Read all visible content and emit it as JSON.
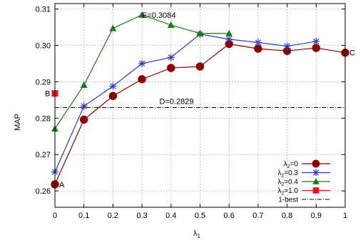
{
  "chart_data": {
    "type": "line",
    "xlabel": "λ",
    "xlabel_sub": "1",
    "ylabel": "MAP",
    "xlim": [
      0,
      1
    ],
    "ylim": [
      0.2555,
      0.3115
    ],
    "xticks": [
      "0",
      "0.1",
      "0.2",
      "0.3",
      "0.4",
      "0.5",
      "0.6",
      "0.7",
      "0.8",
      "0.9",
      "1"
    ],
    "yticks": [
      "0.26",
      "0.27",
      "0.28",
      "0.29",
      "0.30",
      "0.31"
    ],
    "ytick_values": [
      0.26,
      0.27,
      0.28,
      0.29,
      0.3,
      0.31
    ],
    "grid": true,
    "legend_position": "bottom-right",
    "series": [
      {
        "name_prefix": "λ",
        "name_sub": "2",
        "name_suffix": "=0",
        "color": "#8b0000",
        "marker": "circle",
        "x": [
          0,
          0.1,
          0.2,
          0.3,
          0.4,
          0.5,
          0.6,
          0.7,
          0.8,
          0.9,
          1.0
        ],
        "values": [
          0.2618,
          0.2796,
          0.2861,
          0.2907,
          0.2938,
          0.2942,
          0.3004,
          0.2991,
          0.2985,
          0.2993,
          0.298
        ]
      },
      {
        "name_prefix": "λ",
        "name_sub": "2",
        "name_suffix": "=0.3",
        "color": "#2b3bbf",
        "marker": "star",
        "x": [
          0,
          0.1,
          0.2,
          0.3,
          0.4,
          0.5,
          0.6,
          0.7,
          0.8,
          0.9
        ],
        "values": [
          0.2652,
          0.2833,
          0.2888,
          0.295,
          0.2967,
          0.3031,
          0.3017,
          0.3008,
          0.2998,
          0.3011
        ]
      },
      {
        "name_prefix": "λ",
        "name_sub": "2",
        "name_suffix": "=0.4",
        "color": "#1a7a1a",
        "marker": "triangle",
        "x": [
          0,
          0.1,
          0.2,
          0.3,
          0.4,
          0.5,
          0.6
        ],
        "values": [
          0.2771,
          0.2891,
          0.3047,
          0.3084,
          0.3056,
          0.3033,
          0.3033
        ]
      },
      {
        "name_prefix": "λ",
        "name_sub": "2",
        "name_suffix": "=1.0",
        "color": "#e8141c",
        "marker": "square",
        "x": [
          0
        ],
        "values": [
          0.2868
        ]
      }
    ],
    "reference_line": {
      "name": "1-best",
      "value": 0.2829,
      "color": "#000000"
    },
    "annotations": [
      {
        "text": "A",
        "x": 0.0,
        "y": 0.2618
      },
      {
        "text": "B",
        "x": 0.0,
        "y": 0.2868
      },
      {
        "text": "C",
        "x": 1.0,
        "y": 0.298
      },
      {
        "text": "D=0.2829",
        "x": 0.5,
        "y": 0.2829
      },
      {
        "text": "E=0.3084",
        "x": 0.3,
        "y": 0.3084
      }
    ]
  }
}
